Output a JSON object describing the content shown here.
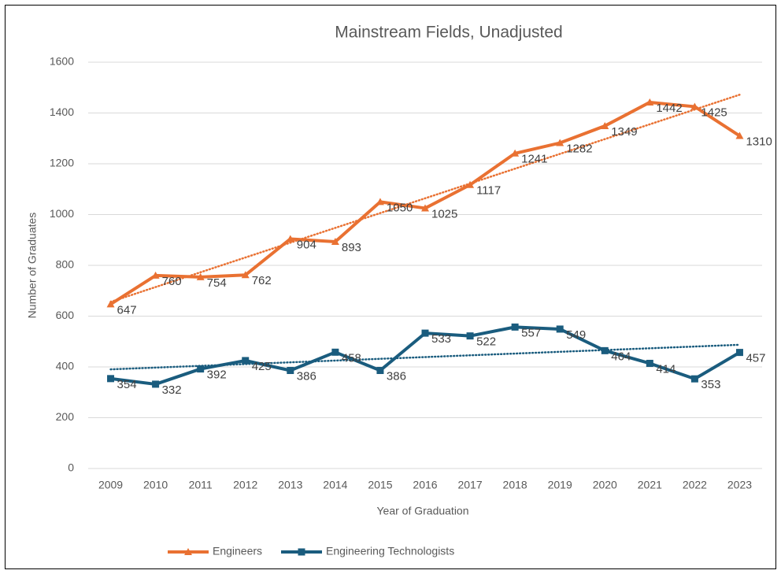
{
  "chart_data": {
    "type": "line",
    "title": "Mainstream Fields, Unadjusted",
    "x_label": "Year of Graduation",
    "y_label": "Number of Graduates",
    "categories": [
      "2009",
      "2010",
      "2011",
      "2012",
      "2013",
      "2014",
      "2015",
      "2016",
      "2017",
      "2018",
      "2019",
      "2020",
      "2021",
      "2022",
      "2023"
    ],
    "series": [
      {
        "name": "Engineers",
        "color": "#e97132",
        "marker": "triangle",
        "trendline": true,
        "values": [
          647,
          760,
          754,
          762,
          904,
          893,
          1050,
          1025,
          1117,
          1241,
          1282,
          1349,
          1442,
          1425,
          1310
        ]
      },
      {
        "name": "Engineering Technologists",
        "color": "#1a5c7e",
        "marker": "square",
        "trendline": true,
        "values": [
          354,
          332,
          392,
          425,
          386,
          458,
          386,
          533,
          522,
          557,
          549,
          464,
          414,
          353,
          457
        ]
      }
    ],
    "ylim": [
      0,
      1600
    ],
    "yticks": [
      0,
      200,
      400,
      600,
      800,
      1000,
      1200,
      1400,
      1600
    ],
    "grid": true,
    "legend": "bottom",
    "data_labels": true
  }
}
